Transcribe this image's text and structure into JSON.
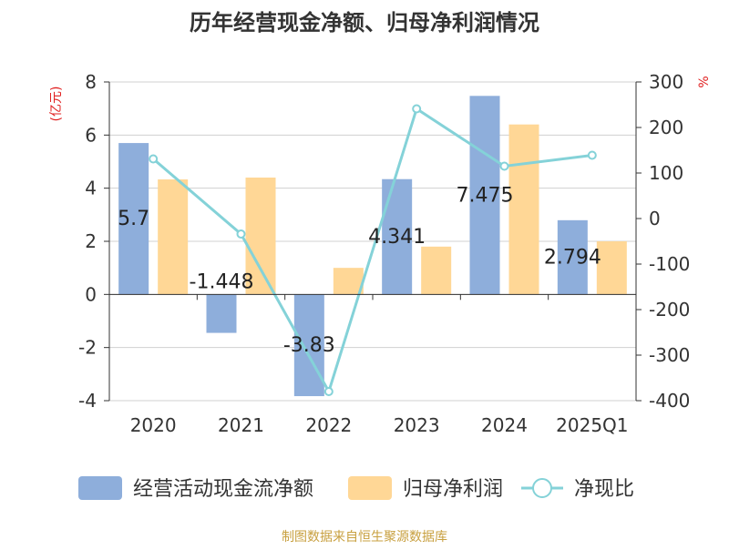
{
  "chart_data": {
    "type": "bar",
    "title": "历年经营现金净额、归母净利润情况",
    "categories": [
      "2020",
      "2021",
      "2022",
      "2023",
      "2024",
      "2025Q1"
    ],
    "series": [
      {
        "name": "经营活动现金流净额",
        "type": "bar",
        "axis": "left",
        "color": "#8eaedb",
        "values": [
          5.7,
          -1.448,
          -3.83,
          4.341,
          7.475,
          2.794
        ]
      },
      {
        "name": "归母净利润",
        "type": "bar",
        "axis": "left",
        "color": "#ffd796",
        "values": [
          4.33,
          4.4,
          1.0,
          1.8,
          6.4,
          2.0
        ]
      },
      {
        "name": "净现比",
        "type": "line",
        "axis": "right",
        "color": "#84d2d8",
        "values": [
          131,
          -34,
          -380,
          241,
          115,
          139
        ]
      }
    ],
    "data_labels": [
      "5.7",
      "-1.448",
      "-3.83",
      "4.341",
      "7.475",
      "2.794"
    ],
    "y_left": {
      "label": "(亿元)",
      "min": -4,
      "max": 8,
      "ticks": [
        -4,
        -2,
        0,
        2,
        4,
        6,
        8
      ]
    },
    "y_right": {
      "label": "%",
      "min": -400,
      "max": 300,
      "ticks": [
        -400,
        -300,
        -200,
        -100,
        0,
        100,
        200,
        300
      ]
    },
    "grid": true,
    "legend_position": "bottom",
    "source": "制图数据来自恒生聚源数据库"
  }
}
